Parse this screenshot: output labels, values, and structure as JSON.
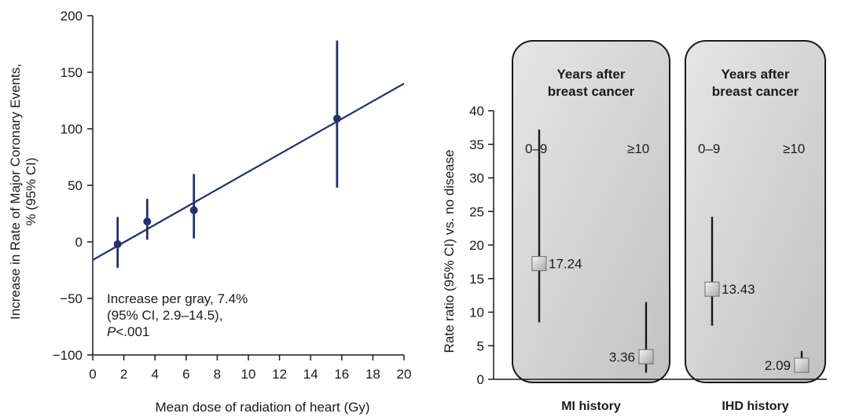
{
  "chart_data": [
    {
      "type": "scatter",
      "xlabel": "Mean dose of radiation of heart (Gy)",
      "ylabel_lines": [
        "Increase in Rate of Major Coronary Events,",
        "% (95% CI)"
      ],
      "xlim": [
        0,
        20
      ],
      "ylim": [
        -100,
        200
      ],
      "x_ticks": [
        0,
        2,
        4,
        6,
        8,
        10,
        12,
        14,
        16,
        18,
        20
      ],
      "y_ticks": [
        -100,
        -50,
        0,
        50,
        100,
        150,
        200
      ],
      "y_tick_labels": [
        "−100",
        "−50",
        "0",
        "50",
        "100",
        "150",
        "200"
      ],
      "points": [
        {
          "x": 1.6,
          "y": -2,
          "ci_low": -23,
          "ci_high": 22
        },
        {
          "x": 3.5,
          "y": 18,
          "ci_low": 2,
          "ci_high": 38
        },
        {
          "x": 6.5,
          "y": 28,
          "ci_low": 3,
          "ci_high": 60
        },
        {
          "x": 15.7,
          "y": 109,
          "ci_low": 48,
          "ci_high": 178
        }
      ],
      "fit_line": {
        "x": [
          0,
          20
        ],
        "y": [
          -16,
          140
        ]
      },
      "annotation_lines": [
        "Increase per gray, 7.4%",
        "(95% CI, 2.9–14.5),"
      ],
      "annotation_p": {
        "italic": "P",
        "rest": "<.001"
      },
      "color": "#25306b"
    },
    {
      "type": "scatter",
      "ylabel": "Rate ratio (95% CI) vs. no disease",
      "ylim": [
        0,
        40
      ],
      "y_ticks": [
        0,
        5,
        10,
        15,
        20,
        25,
        30,
        35,
        40
      ],
      "panel_title_lines": [
        "Years after",
        "breast cancer"
      ],
      "groups": [
        {
          "label": "MI history",
          "categories": [
            "0–9",
            "≥10"
          ],
          "points": [
            {
              "category": "0–9",
              "value": 17.24,
              "value_label": "17.24",
              "ci_low": 8.5,
              "ci_high": 37.2
            },
            {
              "category": "≥10",
              "value": 3.36,
              "value_label": "3.36",
              "ci_low": 1.0,
              "ci_high": 11.5
            }
          ]
        },
        {
          "label": "IHD history",
          "categories": [
            "0–9",
            "≥10"
          ],
          "points": [
            {
              "category": "0–9",
              "value": 13.43,
              "value_label": "13.43",
              "ci_low": 8.0,
              "ci_high": 24.2
            },
            {
              "category": "≥10",
              "value": 2.09,
              "value_label": "2.09",
              "ci_low": 1.2,
              "ci_high": 4.2
            }
          ]
        }
      ],
      "panel_fill": "#d4d4d4"
    }
  ]
}
